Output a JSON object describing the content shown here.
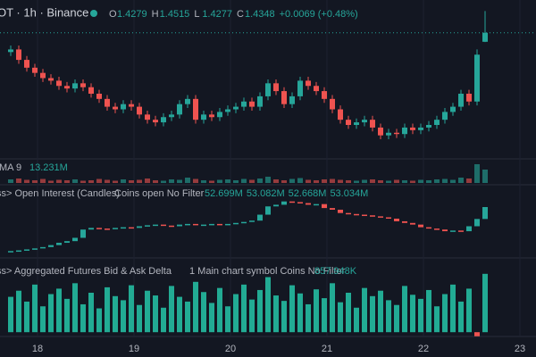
{
  "header": {
    "symbol": "OT · 1h · Binance",
    "ohlc": [
      {
        "label": "O",
        "value": "1.4279"
      },
      {
        "label": "H",
        "value": "1.4515"
      },
      {
        "label": "L",
        "value": "1.4277"
      },
      {
        "label": "C",
        "value": "1.4348"
      }
    ],
    "change": "+0.0069 (+0.48%)"
  },
  "time_axis": [
    "18",
    "19",
    "20",
    "21",
    "22",
    "23"
  ],
  "chart_data": [
    {
      "type": "candlestick",
      "title": "OT · 1h · Binance",
      "ylim": [
        1.34,
        1.46
      ],
      "up_color": "#26a69a",
      "down_color": "#ef5350",
      "open": [
        1.42,
        1.422,
        1.414,
        1.408,
        1.404,
        1.4,
        1.398,
        1.394,
        1.392,
        1.396,
        1.393,
        1.388,
        1.384,
        1.378,
        1.376,
        1.38,
        1.378,
        1.372,
        1.368,
        1.366,
        1.37,
        1.372,
        1.38,
        1.384,
        1.368,
        1.372,
        1.37,
        1.374,
        1.376,
        1.378,
        1.382,
        1.378,
        1.386,
        1.396,
        1.39,
        1.38,
        1.386,
        1.398,
        1.394,
        1.39,
        1.384,
        1.376,
        1.368,
        1.364,
        1.366,
        1.368,
        1.362,
        1.356,
        1.358,
        1.357,
        1.362,
        1.36,
        1.362,
        1.364,
        1.368,
        1.374,
        1.378,
        1.388,
        1.382,
        1.4279
      ],
      "high": [
        1.425,
        1.425,
        1.417,
        1.411,
        1.407,
        1.403,
        1.401,
        1.397,
        1.399,
        1.399,
        1.396,
        1.391,
        1.387,
        1.381,
        1.383,
        1.383,
        1.381,
        1.375,
        1.371,
        1.373,
        1.375,
        1.383,
        1.387,
        1.387,
        1.375,
        1.375,
        1.377,
        1.379,
        1.381,
        1.385,
        1.385,
        1.389,
        1.399,
        1.399,
        1.393,
        1.389,
        1.401,
        1.401,
        1.397,
        1.393,
        1.387,
        1.379,
        1.371,
        1.369,
        1.371,
        1.371,
        1.365,
        1.361,
        1.361,
        1.365,
        1.365,
        1.365,
        1.367,
        1.371,
        1.377,
        1.381,
        1.391,
        1.391,
        1.422,
        1.4515
      ],
      "low": [
        1.417,
        1.411,
        1.405,
        1.401,
        1.397,
        1.395,
        1.391,
        1.389,
        1.389,
        1.39,
        1.385,
        1.381,
        1.375,
        1.373,
        1.373,
        1.375,
        1.369,
        1.365,
        1.363,
        1.363,
        1.367,
        1.369,
        1.377,
        1.365,
        1.365,
        1.367,
        1.367,
        1.371,
        1.373,
        1.375,
        1.375,
        1.375,
        1.383,
        1.387,
        1.377,
        1.377,
        1.383,
        1.391,
        1.387,
        1.381,
        1.373,
        1.365,
        1.361,
        1.361,
        1.363,
        1.359,
        1.353,
        1.353,
        1.354,
        1.354,
        1.357,
        1.357,
        1.359,
        1.361,
        1.365,
        1.371,
        1.375,
        1.379,
        1.379,
        1.4277
      ],
      "close": [
        1.422,
        1.414,
        1.408,
        1.404,
        1.4,
        1.398,
        1.394,
        1.392,
        1.396,
        1.393,
        1.388,
        1.384,
        1.378,
        1.376,
        1.38,
        1.378,
        1.372,
        1.368,
        1.366,
        1.37,
        1.372,
        1.38,
        1.384,
        1.368,
        1.372,
        1.37,
        1.374,
        1.376,
        1.378,
        1.382,
        1.378,
        1.386,
        1.396,
        1.39,
        1.38,
        1.386,
        1.398,
        1.394,
        1.39,
        1.384,
        1.376,
        1.368,
        1.364,
        1.366,
        1.368,
        1.362,
        1.356,
        1.358,
        1.357,
        1.362,
        1.36,
        1.362,
        1.364,
        1.368,
        1.374,
        1.378,
        1.388,
        1.382,
        1.418,
        1.4348
      ]
    },
    {
      "type": "bar",
      "title": "MA 9",
      "readout": "13.231M",
      "ylim": [
        0,
        50
      ],
      "values": [
        8,
        10,
        7,
        6,
        9,
        5,
        7,
        6,
        8,
        5,
        6,
        9,
        7,
        5,
        8,
        6,
        7,
        10,
        6,
        5,
        8,
        7,
        12,
        9,
        6,
        5,
        7,
        8,
        6,
        9,
        7,
        10,
        14,
        8,
        6,
        9,
        11,
        7,
        6,
        8,
        9,
        7,
        6,
        5,
        7,
        8,
        6,
        5,
        7,
        6,
        5,
        7,
        6,
        8,
        9,
        7,
        12,
        10,
        42,
        30
      ]
    },
    {
      "type": "line",
      "title": "ss> Open Interest (Candles)",
      "params": "Coins open No Filter",
      "readouts": [
        "52.699M",
        "53.082M",
        "52.668M",
        "53.034M"
      ],
      "ylim": [
        51.6,
        53.3
      ],
      "values": [
        51.7,
        51.72,
        51.75,
        51.78,
        51.82,
        51.88,
        51.95,
        52.0,
        52.1,
        52.35,
        52.4,
        52.38,
        52.36,
        52.4,
        52.42,
        52.4,
        52.45,
        52.48,
        52.5,
        52.47,
        52.45,
        52.5,
        52.52,
        52.48,
        52.5,
        52.52,
        52.49,
        52.52,
        52.55,
        52.58,
        52.62,
        52.8,
        53.05,
        53.1,
        53.2,
        53.18,
        53.15,
        53.1,
        53.12,
        53.0,
        52.95,
        52.85,
        52.82,
        52.8,
        52.78,
        52.75,
        52.72,
        52.68,
        52.6,
        52.55,
        52.5,
        52.42,
        52.38,
        52.35,
        52.3,
        52.32,
        52.3,
        52.45,
        52.67,
        53.03
      ]
    },
    {
      "type": "bar",
      "title": "ss> Aggregated Futures Bid & Ask Delta",
      "params": "1 Main chart symbol Coins No Filter",
      "readout": "857.948K",
      "ylim": [
        -50,
        1000
      ],
      "color": "#22ab94",
      "values": [
        520,
        610,
        450,
        700,
        380,
        560,
        640,
        490,
        720,
        410,
        580,
        350,
        660,
        530,
        470,
        690,
        400,
        610,
        540,
        360,
        680,
        520,
        450,
        740,
        590,
        430,
        650,
        380,
        560,
        700,
        480,
        620,
        810,
        540,
        460,
        690,
        570,
        410,
        630,
        500,
        720,
        440,
        580,
        360,
        650,
        530,
        610,
        470,
        400,
        680,
        550,
        490,
        620,
        380,
        560,
        700,
        450,
        640,
        -60,
        857.948
      ]
    }
  ]
}
